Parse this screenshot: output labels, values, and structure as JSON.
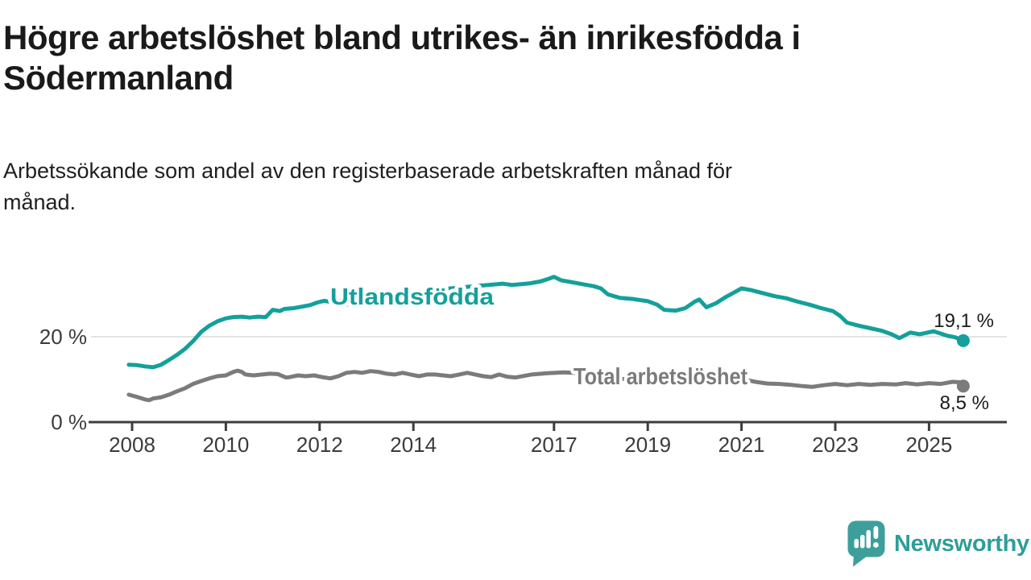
{
  "header": {
    "title": "Högre arbetslöshet bland utrikes- än inrikesfödda i Södermanland",
    "title_lines": [
      "Högre arbetslöshet bland utrikes- än inrikesfödda i",
      "Södermanland"
    ],
    "subtitle": "Arbetssökande som andel av den registerbaserade arbetskraften månad för månad.",
    "subtitle_lines": [
      "Arbetssökande som andel av den registerbaserade arbetskraften månad för",
      "månad."
    ]
  },
  "colors": {
    "accent_teal": "#14a09a",
    "line_gray": "#7b7b7b",
    "axis": "#3d3d3d",
    "gridline": "#dcdcdc",
    "text_dark": "#1a1a1a",
    "brand_teal": "#2e9e99",
    "logo_teal": "#3d9f9b"
  },
  "footer": {
    "brand": "Newsworthy"
  },
  "chart_data": {
    "type": "line",
    "title": "Högre arbetslöshet bland utrikes- än inrikesfödda i Södermanland",
    "subtitle": "Arbetssökande som andel av den registerbaserade arbetskraften månad för månad.",
    "unit": "%",
    "grid": "single horizontal gridline at 20 %",
    "legend_position": "labels inline on lines",
    "x_axis": {
      "range_years": [
        2007.9,
        2025.9
      ],
      "ticks": [
        {
          "label": "2008",
          "year": 2008
        },
        {
          "label": "2010",
          "year": 2010
        },
        {
          "label": "2012",
          "year": 2012
        },
        {
          "label": "2014",
          "year": 2014
        },
        {
          "label": "2017",
          "year": 2017
        },
        {
          "label": "2019",
          "year": 2019
        },
        {
          "label": "2021",
          "year": 2021
        },
        {
          "label": "2023",
          "year": 2023
        },
        {
          "label": "2025",
          "year": 2025
        }
      ]
    },
    "y_axis": {
      "range": [
        0,
        36
      ],
      "ticks": [
        {
          "value": 0,
          "label": "0 %"
        },
        {
          "value": 20,
          "label": "20 %"
        }
      ],
      "gridline_values": [
        20
      ]
    },
    "series": [
      {
        "name": "Utlandsfödda",
        "color": "#14a09a",
        "end_label": "19,1 %",
        "end_value": 19.1,
        "points": [
          [
            2007.93,
            13.5
          ],
          [
            2008.1,
            13.4
          ],
          [
            2008.27,
            13.1
          ],
          [
            2008.45,
            12.9
          ],
          [
            2008.62,
            13.5
          ],
          [
            2008.79,
            14.6
          ],
          [
            2008.96,
            15.8
          ],
          [
            2009.13,
            17.2
          ],
          [
            2009.31,
            19.1
          ],
          [
            2009.48,
            21.2
          ],
          [
            2009.65,
            22.6
          ],
          [
            2009.82,
            23.6
          ],
          [
            2010.0,
            24.3
          ],
          [
            2010.16,
            24.6
          ],
          [
            2010.34,
            24.7
          ],
          [
            2010.51,
            24.5
          ],
          [
            2010.68,
            24.7
          ],
          [
            2010.85,
            24.6
          ],
          [
            2011.0,
            26.3
          ],
          [
            2011.15,
            26.0
          ],
          [
            2011.25,
            26.5
          ],
          [
            2011.45,
            26.7
          ],
          [
            2011.6,
            27.0
          ],
          [
            2011.8,
            27.4
          ],
          [
            2011.95,
            28.0
          ],
          [
            2012.1,
            28.4
          ],
          [
            2012.3,
            28.0
          ],
          [
            2012.45,
            27.2
          ],
          [
            2012.6,
            27.6
          ],
          [
            2012.8,
            28.0
          ],
          [
            2013.0,
            28.4
          ],
          [
            2013.3,
            28.9
          ],
          [
            2013.6,
            29.5
          ],
          [
            2013.9,
            30.0
          ],
          [
            2014.2,
            30.5
          ],
          [
            2014.5,
            30.9
          ],
          [
            2014.8,
            31.3
          ],
          [
            2015.1,
            31.6
          ],
          [
            2015.4,
            31.9
          ],
          [
            2015.7,
            32.2
          ],
          [
            2015.9,
            32.4
          ],
          [
            2016.1,
            32.1
          ],
          [
            2016.3,
            32.3
          ],
          [
            2016.5,
            32.5
          ],
          [
            2016.7,
            32.9
          ],
          [
            2016.85,
            33.4
          ],
          [
            2017.0,
            34.0
          ],
          [
            2017.15,
            33.2
          ],
          [
            2017.35,
            32.8
          ],
          [
            2017.6,
            32.3
          ],
          [
            2017.85,
            31.8
          ],
          [
            2018.0,
            31.3
          ],
          [
            2018.15,
            29.9
          ],
          [
            2018.4,
            29.1
          ],
          [
            2018.7,
            28.8
          ],
          [
            2019.0,
            28.3
          ],
          [
            2019.2,
            27.5
          ],
          [
            2019.35,
            26.3
          ],
          [
            2019.6,
            26.1
          ],
          [
            2019.8,
            26.7
          ],
          [
            2020.0,
            28.2
          ],
          [
            2020.1,
            28.7
          ],
          [
            2020.25,
            26.9
          ],
          [
            2020.45,
            27.8
          ],
          [
            2020.65,
            29.2
          ],
          [
            2020.85,
            30.4
          ],
          [
            2021.0,
            31.3
          ],
          [
            2021.2,
            30.9
          ],
          [
            2021.45,
            30.2
          ],
          [
            2021.7,
            29.5
          ],
          [
            2021.95,
            29.0
          ],
          [
            2022.2,
            28.2
          ],
          [
            2022.45,
            27.5
          ],
          [
            2022.7,
            26.7
          ],
          [
            2022.95,
            26.0
          ],
          [
            2023.1,
            24.9
          ],
          [
            2023.25,
            23.3
          ],
          [
            2023.5,
            22.6
          ],
          [
            2023.75,
            22.0
          ],
          [
            2024.0,
            21.4
          ],
          [
            2024.2,
            20.6
          ],
          [
            2024.37,
            19.7
          ],
          [
            2024.6,
            21.0
          ],
          [
            2024.8,
            20.6
          ],
          [
            2025.1,
            21.3
          ],
          [
            2025.4,
            20.2
          ],
          [
            2025.55,
            19.9
          ],
          [
            2025.73,
            19.1
          ]
        ]
      },
      {
        "name": "Total arbetslöshet",
        "color": "#7b7b7b",
        "end_label": "8,5 %",
        "end_value": 8.5,
        "points": [
          [
            2007.93,
            6.5
          ],
          [
            2008.1,
            6.0
          ],
          [
            2008.27,
            5.4
          ],
          [
            2008.36,
            5.2
          ],
          [
            2008.45,
            5.6
          ],
          [
            2008.62,
            5.9
          ],
          [
            2008.79,
            6.5
          ],
          [
            2008.96,
            7.3
          ],
          [
            2009.13,
            8.0
          ],
          [
            2009.3,
            9.0
          ],
          [
            2009.48,
            9.7
          ],
          [
            2009.65,
            10.3
          ],
          [
            2009.82,
            10.8
          ],
          [
            2010.0,
            11.0
          ],
          [
            2010.16,
            11.8
          ],
          [
            2010.25,
            12.1
          ],
          [
            2010.34,
            11.8
          ],
          [
            2010.42,
            11.2
          ],
          [
            2010.59,
            11.0
          ],
          [
            2010.77,
            11.2
          ],
          [
            2010.94,
            11.4
          ],
          [
            2011.11,
            11.3
          ],
          [
            2011.28,
            10.5
          ],
          [
            2011.37,
            10.6
          ],
          [
            2011.54,
            11.0
          ],
          [
            2011.71,
            10.8
          ],
          [
            2011.88,
            11.0
          ],
          [
            2012.05,
            10.6
          ],
          [
            2012.23,
            10.3
          ],
          [
            2012.4,
            10.8
          ],
          [
            2012.57,
            11.6
          ],
          [
            2012.74,
            11.8
          ],
          [
            2012.91,
            11.6
          ],
          [
            2013.09,
            12.0
          ],
          [
            2013.26,
            11.8
          ],
          [
            2013.43,
            11.4
          ],
          [
            2013.6,
            11.2
          ],
          [
            2013.77,
            11.6
          ],
          [
            2013.94,
            11.2
          ],
          [
            2014.12,
            10.8
          ],
          [
            2014.29,
            11.2
          ],
          [
            2014.46,
            11.2
          ],
          [
            2014.63,
            11.0
          ],
          [
            2014.8,
            10.8
          ],
          [
            2014.98,
            11.2
          ],
          [
            2015.15,
            11.6
          ],
          [
            2015.32,
            11.2
          ],
          [
            2015.49,
            10.8
          ],
          [
            2015.66,
            10.6
          ],
          [
            2015.83,
            11.2
          ],
          [
            2016.0,
            10.7
          ],
          [
            2016.18,
            10.5
          ],
          [
            2016.52,
            11.2
          ],
          [
            2016.87,
            11.5
          ],
          [
            2017.21,
            11.7
          ],
          [
            2017.42,
            11.6
          ],
          [
            2017.7,
            11.2
          ],
          [
            2018.0,
            10.8
          ],
          [
            2018.3,
            10.4
          ],
          [
            2018.6,
            10.0
          ],
          [
            2018.9,
            9.7
          ],
          [
            2019.2,
            9.5
          ],
          [
            2019.5,
            9.3
          ],
          [
            2019.8,
            9.5
          ],
          [
            2020.1,
            10.3
          ],
          [
            2020.4,
            10.9
          ],
          [
            2020.7,
            11.2
          ],
          [
            2020.95,
            10.8
          ],
          [
            2021.11,
            9.9
          ],
          [
            2021.3,
            9.5
          ],
          [
            2021.55,
            9.1
          ],
          [
            2021.8,
            9.0
          ],
          [
            2022.05,
            8.8
          ],
          [
            2022.3,
            8.5
          ],
          [
            2022.5,
            8.3
          ],
          [
            2022.75,
            8.7
          ],
          [
            2023.0,
            9.0
          ],
          [
            2023.25,
            8.7
          ],
          [
            2023.5,
            9.0
          ],
          [
            2023.75,
            8.8
          ],
          [
            2024.0,
            9.0
          ],
          [
            2024.3,
            8.9
          ],
          [
            2024.5,
            9.2
          ],
          [
            2024.75,
            8.9
          ],
          [
            2025.0,
            9.2
          ],
          [
            2025.25,
            9.0
          ],
          [
            2025.5,
            9.5
          ],
          [
            2025.65,
            9.4
          ],
          [
            2025.73,
            8.5
          ]
        ]
      }
    ]
  }
}
